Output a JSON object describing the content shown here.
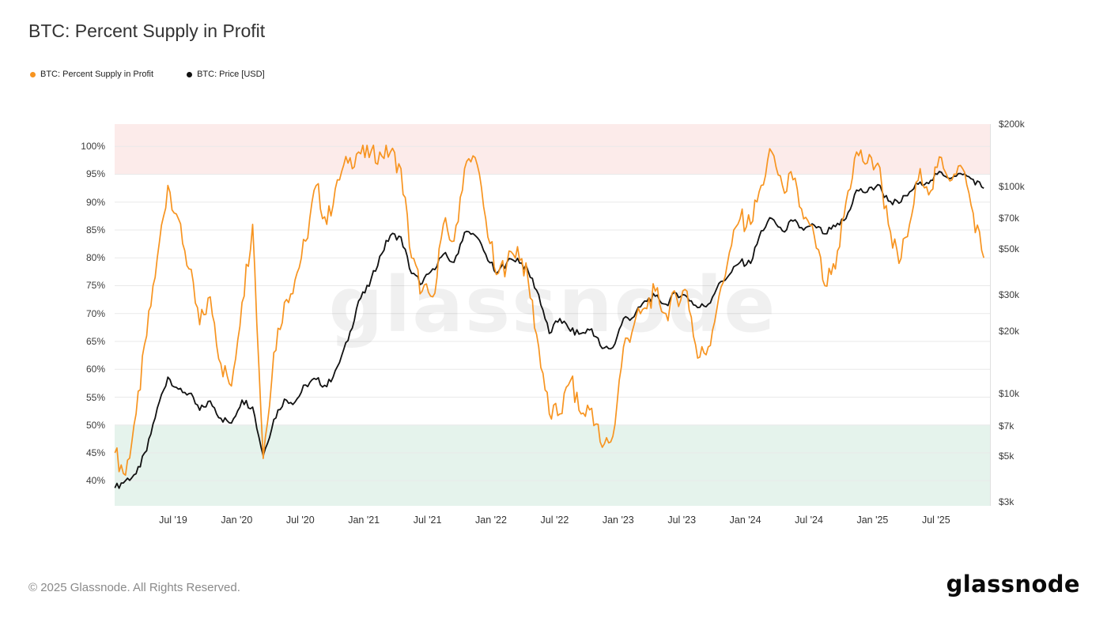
{
  "page": {
    "title": "BTC: Percent Supply in Profit",
    "copyright": "© 2025 Glassnode. All Rights Reserved.",
    "logo_text": "glassnode",
    "watermark": "glassnode"
  },
  "legend": [
    {
      "label": "BTC: Percent Supply in Profit",
      "color": "#f79420"
    },
    {
      "label": "BTC: Price [USD]",
      "color": "#111111"
    }
  ],
  "chart_data": {
    "type": "line",
    "title": "BTC: Percent Supply in Profit",
    "x_unit": "month",
    "grid_color": "#e9e9e9",
    "months": [
      "2019-01",
      "2019-02",
      "2019-03",
      "2019-04",
      "2019-05",
      "2019-06",
      "2019-07",
      "2019-08",
      "2019-09",
      "2019-10",
      "2019-11",
      "2019-12",
      "2020-01",
      "2020-02",
      "2020-03",
      "2020-04",
      "2020-05",
      "2020-06",
      "2020-07",
      "2020-08",
      "2020-09",
      "2020-10",
      "2020-11",
      "2020-12",
      "2021-01",
      "2021-02",
      "2021-03",
      "2021-04",
      "2021-05",
      "2021-06",
      "2021-07",
      "2021-08",
      "2021-09",
      "2021-10",
      "2021-11",
      "2021-12",
      "2022-01",
      "2022-02",
      "2022-03",
      "2022-04",
      "2022-05",
      "2022-06",
      "2022-07",
      "2022-08",
      "2022-09",
      "2022-10",
      "2022-11",
      "2022-12",
      "2023-01",
      "2023-02",
      "2023-03",
      "2023-04",
      "2023-05",
      "2023-06",
      "2023-07",
      "2023-08",
      "2023-09",
      "2023-10",
      "2023-11",
      "2023-12",
      "2024-01",
      "2024-02",
      "2024-03",
      "2024-04",
      "2024-05",
      "2024-06",
      "2024-07",
      "2024-08",
      "2024-09",
      "2024-10",
      "2024-11",
      "2024-12",
      "2025-01",
      "2025-02",
      "2025-03",
      "2025-04",
      "2025-05",
      "2025-06",
      "2025-07",
      "2025-08",
      "2025-09",
      "2025-10",
      "2025-11"
    ],
    "series": [
      {
        "name": "BTC: Percent Supply in Profit",
        "axis": "left",
        "unit": "%",
        "color": "#f79420",
        "values": [
          45,
          41,
          52,
          66,
          80,
          93,
          87,
          78,
          68,
          73,
          61,
          57,
          72,
          86,
          44,
          63,
          72,
          76,
          83,
          93,
          86,
          94,
          97,
          99,
          98,
          99,
          99,
          96,
          80,
          74,
          73,
          86,
          83,
          96,
          98,
          87,
          77,
          79,
          82,
          76,
          64,
          52,
          52,
          58,
          52,
          53,
          46,
          48,
          64,
          68,
          71,
          74,
          70,
          73,
          74,
          62,
          64,
          73,
          81,
          87,
          86,
          93,
          99,
          93,
          94,
          87,
          84,
          75,
          78,
          90,
          99,
          97,
          97,
          86,
          79,
          86,
          96,
          92,
          98,
          94,
          96,
          88,
          80
        ]
      },
      {
        "name": "BTC: Price [USD]",
        "axis": "right",
        "unit": "USD",
        "scale": "log",
        "color": "#111111",
        "values": [
          3500,
          3800,
          4100,
          5300,
          8500,
          12000,
          10500,
          10000,
          8300,
          9200,
          7600,
          7200,
          9300,
          8600,
          5000,
          7500,
          9400,
          9100,
          11000,
          11700,
          10800,
          13500,
          18000,
          28000,
          33000,
          46000,
          58000,
          57000,
          38000,
          34000,
          40000,
          47000,
          43000,
          60000,
          58000,
          47000,
          38000,
          43000,
          45000,
          39000,
          30000,
          19500,
          23000,
          20000,
          19500,
          20500,
          16500,
          16700,
          23000,
          23500,
          28000,
          29500,
          27000,
          30500,
          29300,
          26000,
          27000,
          34000,
          37500,
          43000,
          42500,
          61000,
          70000,
          61000,
          68000,
          61500,
          65000,
          59000,
          64000,
          70000,
          96000,
          94000,
          102000,
          85000,
          83000,
          94000,
          105000,
          107000,
          117000,
          110000,
          114000,
          108000,
          98000
        ]
      }
    ],
    "left_axis": {
      "ticks": [
        "40%",
        "45%",
        "50%",
        "55%",
        "60%",
        "65%",
        "70%",
        "75%",
        "80%",
        "85%",
        "90%",
        "95%",
        "100%"
      ],
      "tick_values": [
        40,
        45,
        50,
        55,
        60,
        65,
        70,
        75,
        80,
        85,
        90,
        95,
        100
      ],
      "range": [
        35.5,
        104
      ]
    },
    "right_axis": {
      "ticks": [
        "$200k",
        "$100k",
        "$70k",
        "$50k",
        "$30k",
        "$20k",
        "$10k",
        "$7k",
        "$5k",
        "$3k"
      ],
      "tick_values": [
        200000,
        100000,
        70000,
        50000,
        30000,
        20000,
        10000,
        7000,
        5000,
        3000
      ],
      "scale": "log",
      "range": [
        2870,
        200000
      ]
    },
    "x_axis": {
      "range": [
        2019.04,
        2025.93
      ],
      "ticks": [
        {
          "label": "Jul '19",
          "t": 2019.5
        },
        {
          "label": "Jan '20",
          "t": 2020.0
        },
        {
          "label": "Jul '20",
          "t": 2020.5
        },
        {
          "label": "Jan '21",
          "t": 2021.0
        },
        {
          "label": "Jul '21",
          "t": 2021.5
        },
        {
          "label": "Jan '22",
          "t": 2022.0
        },
        {
          "label": "Jul '22",
          "t": 2022.5
        },
        {
          "label": "Jan '23",
          "t": 2023.0
        },
        {
          "label": "Jul '23",
          "t": 2023.5
        },
        {
          "label": "Jan '24",
          "t": 2024.0
        },
        {
          "label": "Jul '24",
          "t": 2024.5
        },
        {
          "label": "Jan '25",
          "t": 2025.0
        },
        {
          "label": "Jul '25",
          "t": 2025.5
        }
      ]
    },
    "bands": [
      {
        "from": 95,
        "to": 104,
        "color": "#fcebea"
      },
      {
        "from": 35.5,
        "to": 50,
        "color": "#e5f3ec"
      }
    ]
  }
}
